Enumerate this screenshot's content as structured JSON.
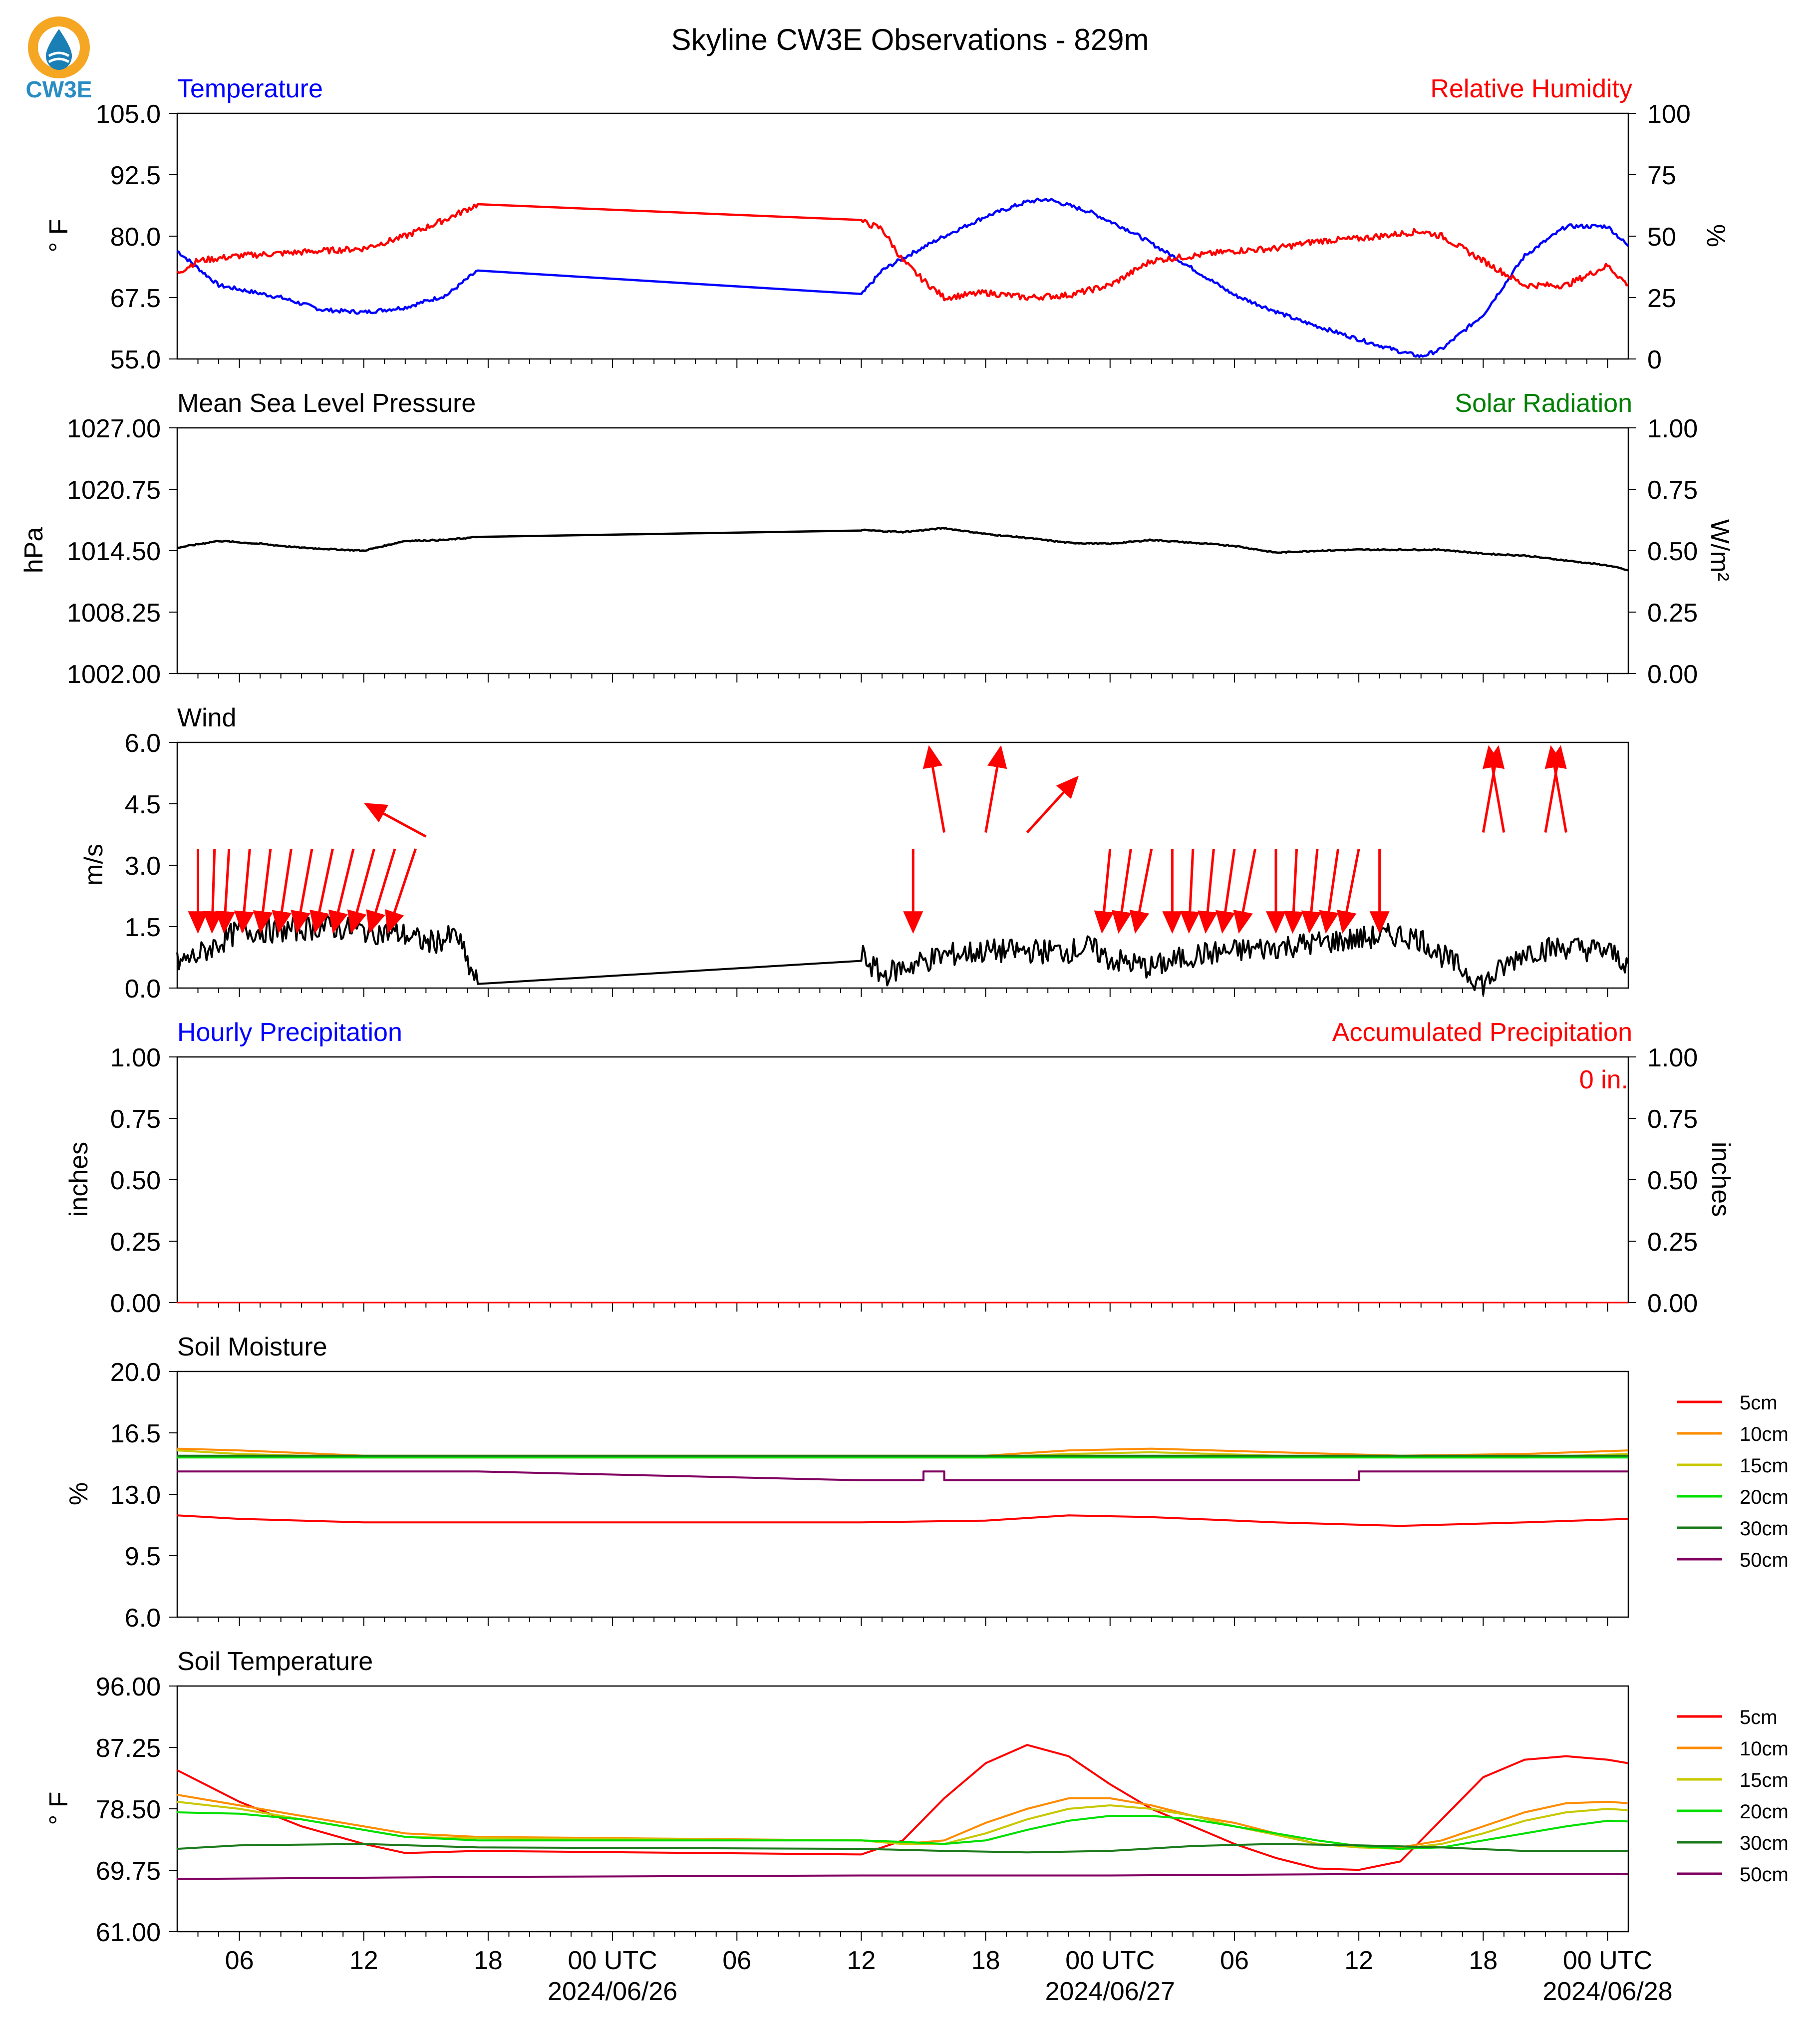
{
  "title": "Skyline CW3E Observations - 829m",
  "logo": {
    "text": "CW3E",
    "colors": {
      "ring": "#f5a623",
      "drop": "#1a7fb5",
      "text": "#2a8cc4"
    }
  },
  "colors": {
    "blue": "#0000ff",
    "red": "#ff0000",
    "green": "#008000",
    "black": "#000000"
  },
  "x_axis": {
    "tick_labels": [
      "06",
      "12",
      "18",
      "00 UTC",
      "06",
      "12",
      "18",
      "00 UTC",
      "06",
      "12",
      "18",
      "00 UTC"
    ],
    "tick_hours": [
      6,
      12,
      18,
      24,
      30,
      36,
      42,
      48,
      54,
      60,
      66,
      72
    ],
    "date_labels": [
      {
        "text": "2024/06/26",
        "hour": 24
      },
      {
        "text": "2024/06/27",
        "hour": 48
      },
      {
        "text": "2024/06/28",
        "hour": 72
      }
    ],
    "range_hours": [
      3,
      73
    ]
  },
  "panels": {
    "temp_rh": {
      "left_title": "Temperature",
      "right_title": "Relative Humidity",
      "left_unit": "° F",
      "right_unit": "%",
      "left_ticks": [
        "105.0",
        "92.5",
        "80.0",
        "67.5",
        "55.0"
      ],
      "right_ticks": [
        "100",
        "75",
        "50",
        "25",
        "0"
      ]
    },
    "pressure": {
      "left_title": "Mean Sea Level Pressure",
      "right_title": "Solar Radiation",
      "left_unit": "hPa",
      "right_unit": "W/m²",
      "left_ticks": [
        "1027.00",
        "1020.75",
        "1014.50",
        "1008.25",
        "1002.00"
      ],
      "right_ticks": [
        "1.00",
        "0.75",
        "0.50",
        "0.25",
        "0.00"
      ]
    },
    "wind": {
      "left_title": "Wind",
      "left_unit": "m/s",
      "left_ticks": [
        "6.0",
        "4.5",
        "3.0",
        "1.5",
        "0.0"
      ]
    },
    "precip": {
      "left_title": "Hourly Precipitation",
      "right_title": "Accumulated Precipitation",
      "left_unit": "inches",
      "right_unit": "inches",
      "accum_label": "0 in.",
      "left_ticks": [
        "1.00",
        "0.75",
        "0.50",
        "0.25",
        "0.00"
      ],
      "right_ticks": [
        "1.00",
        "0.75",
        "0.50",
        "0.25",
        "0.00"
      ]
    },
    "soil_moisture": {
      "left_title": "Soil Moisture",
      "left_unit": "%",
      "left_ticks": [
        "20.0",
        "16.5",
        "13.0",
        "9.5",
        "6.0"
      ]
    },
    "soil_temp": {
      "left_title": "Soil Temperature",
      "left_unit": "° F",
      "left_ticks": [
        "96.00",
        "87.25",
        "78.50",
        "69.75",
        "61.00"
      ]
    }
  },
  "legends": {
    "soil_moisture": [
      {
        "label": "5cm",
        "color": "#ff0000"
      },
      {
        "label": "10cm",
        "color": "#ff8c00"
      },
      {
        "label": "15cm",
        "color": "#c8c800"
      },
      {
        "label": "20cm",
        "color": "#00e000"
      },
      {
        "label": "30cm",
        "color": "#1a7a1a"
      },
      {
        "label": "50cm",
        "color": "#800060"
      }
    ],
    "soil_temp": [
      {
        "label": "5cm",
        "color": "#ff0000"
      },
      {
        "label": "10cm",
        "color": "#ff8c00"
      },
      {
        "label": "15cm",
        "color": "#c8c800"
      },
      {
        "label": "20cm",
        "color": "#00e000"
      },
      {
        "label": "30cm",
        "color": "#1a7a1a"
      },
      {
        "label": "50cm",
        "color": "#800060"
      }
    ]
  },
  "chart_data": [
    {
      "type": "line",
      "title": "Temperature / Relative Humidity",
      "ylim_left": [
        55,
        105
      ],
      "ylim_right": [
        0,
        100
      ],
      "series": [
        {
          "name": "Temperature",
          "axis": "left",
          "color": "#0000ff",
          "x": [
            3,
            5,
            8,
            10,
            12,
            14,
            16,
            17.5,
            36,
            37,
            38,
            40,
            42,
            44,
            45,
            47,
            49,
            51,
            54,
            57,
            60,
            62,
            63,
            64,
            66,
            68,
            70,
            72,
            73
          ],
          "y": [
            77,
            70,
            67.5,
            65,
            64.5,
            65.5,
            68,
            73,
            68,
            73,
            75.5,
            80,
            84,
            87,
            87.5,
            85,
            81,
            76,
            68,
            63,
            59,
            56.5,
            55.5,
            57,
            64,
            76,
            82,
            82,
            78
          ]
        },
        {
          "name": "Relative Humidity",
          "axis": "right",
          "color": "#ff0000",
          "x": [
            3,
            4,
            6,
            8,
            10,
            12,
            14,
            16,
            17.5,
            36,
            37,
            38,
            39,
            40,
            42,
            44,
            46,
            48,
            50,
            52,
            54,
            56,
            58,
            60,
            62,
            63,
            64,
            65,
            66,
            68,
            70,
            72,
            73
          ],
          "y": [
            35,
            40,
            42,
            43,
            44,
            45,
            50,
            57,
            63,
            56,
            53,
            40,
            32,
            25,
            27,
            25,
            26,
            30,
            40,
            42,
            44,
            45,
            48,
            49,
            51,
            52,
            50,
            45,
            40,
            30,
            30,
            38,
            30
          ]
        }
      ]
    },
    {
      "type": "line",
      "title": "Mean Sea Level Pressure",
      "ylim_left": [
        1002,
        1027
      ],
      "ylim_right": [
        0,
        1
      ],
      "series": [
        {
          "name": "Mean Sea Level Pressure",
          "axis": "left",
          "color": "#000000",
          "x": [
            3,
            5,
            7,
            9,
            12,
            14,
            16,
            17.5,
            36,
            38,
            40,
            42,
            44,
            46,
            48,
            50,
            52,
            54,
            56,
            58,
            60,
            62,
            64,
            66,
            68,
            70,
            72,
            73
          ],
          "y": [
            1014.8,
            1015.5,
            1015.2,
            1014.8,
            1014.5,
            1015.5,
            1015.6,
            1015.9,
            1016.6,
            1016.4,
            1016.8,
            1016.2,
            1015.8,
            1015.3,
            1015.2,
            1015.6,
            1015.3,
            1015.0,
            1014.3,
            1014.5,
            1014.6,
            1014.6,
            1014.6,
            1014.2,
            1014.0,
            1013.5,
            1013.0,
            1012.5
          ]
        }
      ]
    },
    {
      "type": "line",
      "title": "Wind",
      "ylim": [
        0,
        6
      ],
      "series": [
        {
          "name": "Wind speed",
          "color": "#000000",
          "x": [
            3,
            4,
            5,
            6,
            8,
            10,
            12,
            14,
            15,
            16,
            16.5,
            17,
            17.5,
            36,
            37,
            38,
            40,
            42,
            44,
            46,
            47,
            48,
            50,
            52,
            54,
            56,
            58,
            60,
            62,
            63,
            64,
            66,
            68,
            70,
            72,
            73
          ],
          "y": [
            0.6,
            0.8,
            1.1,
            1.4,
            1.4,
            1.5,
            1.4,
            1.3,
            1.1,
            1.2,
            1.3,
            0.6,
            0.1,
            0.8,
            0.3,
            0.5,
            0.8,
            0.9,
            0.9,
            0.9,
            1.0,
            0.7,
            0.5,
            0.8,
            0.9,
            1.0,
            1.1,
            1.2,
            1.3,
            1.2,
            0.8,
            0.1,
            0.9,
            1.0,
            0.9,
            0.6
          ]
        }
      ],
      "arrows": {
        "x": [
          4,
          4.8,
          5.5,
          6.5,
          7.5,
          8.5,
          9.5,
          10.5,
          11.5,
          12.5,
          13.5,
          14.5,
          15,
          38.5,
          40,
          42,
          44,
          48,
          49,
          50,
          51,
          52,
          53,
          54,
          55,
          56,
          57,
          58,
          59,
          60,
          61,
          66,
          67,
          69,
          70
        ],
        "y": [
          3.4,
          3.4,
          3.4,
          3.4,
          3.4,
          3.4,
          3.4,
          3.4,
          3.4,
          3.4,
          3.4,
          3.4,
          3.7,
          3.4,
          3.8,
          3.8,
          3.8,
          3.4,
          3.4,
          3.4,
          3.4,
          3.4,
          3.4,
          3.4,
          3.4,
          3.4,
          3.4,
          3.4,
          3.4,
          3.4,
          3.4,
          3.8,
          3.8,
          3.8,
          3.8
        ]
      }
    },
    {
      "type": "line",
      "title": "Precipitation",
      "ylim_left": [
        0,
        1
      ],
      "ylim_right": [
        0,
        1
      ],
      "series": [
        {
          "name": "Hourly Precipitation",
          "axis": "left",
          "color": "#0000ff",
          "x": [
            3,
            73
          ],
          "y": [
            0,
            0
          ]
        },
        {
          "name": "Accumulated Precipitation",
          "axis": "right",
          "color": "#ff0000",
          "x": [
            3,
            73
          ],
          "y": [
            0,
            0
          ]
        }
      ]
    },
    {
      "type": "line",
      "title": "Soil Moisture",
      "ylim": [
        6,
        20
      ],
      "series": [
        {
          "name": "5cm",
          "color": "#ff0000",
          "x": [
            3,
            6,
            12,
            36,
            42,
            46,
            50,
            56,
            62,
            68,
            73
          ],
          "y": [
            11.8,
            11.6,
            11.4,
            11.4,
            11.5,
            11.8,
            11.7,
            11.4,
            11.2,
            11.4,
            11.6
          ]
        },
        {
          "name": "10cm",
          "color": "#ff8c00",
          "x": [
            3,
            6,
            12,
            36,
            42,
            46,
            50,
            56,
            62,
            68,
            73
          ],
          "y": [
            15.6,
            15.5,
            15.2,
            15.2,
            15.2,
            15.5,
            15.6,
            15.4,
            15.2,
            15.3,
            15.5
          ]
        },
        {
          "name": "15cm",
          "color": "#c8c800",
          "x": [
            3,
            6,
            12,
            36,
            42,
            46,
            50,
            56,
            62,
            68,
            73
          ],
          "y": [
            15.5,
            15.3,
            15.1,
            15.1,
            15.1,
            15.3,
            15.4,
            15.2,
            15.1,
            15.1,
            15.3
          ]
        },
        {
          "name": "20cm",
          "color": "#00e000",
          "x": [
            3,
            73
          ],
          "y": [
            15.1,
            15.1
          ]
        },
        {
          "name": "30cm",
          "color": "#1a7a1a",
          "x": [
            3,
            73
          ],
          "y": [
            15.2,
            15.2
          ]
        },
        {
          "name": "50cm",
          "color": "#800060",
          "x": [
            3,
            17.5,
            36,
            39,
            39,
            40,
            40,
            60,
            60,
            73
          ],
          "y": [
            14.3,
            14.3,
            13.8,
            13.8,
            14.3,
            14.3,
            13.8,
            13.8,
            14.3,
            14.3
          ]
        }
      ]
    },
    {
      "type": "line",
      "title": "Soil Temperature",
      "ylim": [
        61,
        96
      ],
      "series": [
        {
          "name": "5cm",
          "color": "#ff0000",
          "x": [
            3,
            6,
            9,
            12,
            14,
            17.5,
            36,
            38,
            40,
            42,
            44,
            46,
            48,
            50,
            52,
            54,
            56,
            58,
            60,
            62,
            64,
            66,
            68,
            70,
            72,
            73
          ],
          "y": [
            84,
            79.5,
            76,
            73.5,
            72.2,
            72.5,
            72,
            74,
            80,
            85,
            87.6,
            86,
            82,
            78.5,
            76,
            73.5,
            71.5,
            70,
            69.8,
            71,
            77,
            83,
            85.5,
            86,
            85.5,
            85
          ]
        },
        {
          "name": "10cm",
          "color": "#ff8c00",
          "x": [
            3,
            6,
            9,
            12,
            14,
            17.5,
            36,
            38,
            40,
            42,
            44,
            46,
            48,
            50,
            52,
            54,
            56,
            58,
            60,
            62,
            64,
            66,
            68,
            70,
            72,
            73
          ],
          "y": [
            80.5,
            79,
            77.5,
            76,
            75,
            74.5,
            74,
            73.5,
            74,
            76.5,
            78.5,
            80,
            80,
            79,
            77.5,
            76.5,
            75,
            73.5,
            73,
            73,
            74,
            76,
            78,
            79.3,
            79.5,
            79.3
          ]
        },
        {
          "name": "15cm",
          "color": "#c8c800",
          "x": [
            3,
            6,
            9,
            12,
            14,
            17.5,
            36,
            38,
            40,
            42,
            44,
            46,
            48,
            50,
            52,
            54,
            56,
            58,
            60,
            62,
            64,
            66,
            68,
            70,
            72,
            73
          ],
          "y": [
            79.5,
            78.5,
            77,
            75.5,
            74.5,
            74.3,
            74,
            73.5,
            73.5,
            75,
            77,
            78.5,
            79,
            78.5,
            77.5,
            76,
            74.8,
            73.5,
            73,
            72.8,
            73.5,
            75,
            76.8,
            78,
            78.5,
            78.3
          ]
        },
        {
          "name": "20cm",
          "color": "#00e000",
          "x": [
            3,
            6,
            9,
            12,
            14,
            17.5,
            36,
            38,
            40,
            42,
            44,
            46,
            48,
            50,
            52,
            54,
            56,
            58,
            60,
            62,
            64,
            66,
            68,
            70,
            72,
            73
          ],
          "y": [
            78,
            77.8,
            77,
            75.5,
            74.5,
            74,
            74,
            73.8,
            73.5,
            74,
            75.5,
            76.8,
            77.5,
            77.5,
            77,
            76,
            75,
            74,
            73.2,
            72.8,
            73,
            74,
            75,
            76,
            76.8,
            76.7
          ]
        },
        {
          "name": "30cm",
          "color": "#1a7a1a",
          "x": [
            3,
            6,
            12,
            17.5,
            36,
            40,
            44,
            48,
            52,
            56,
            60,
            64,
            68,
            72,
            73
          ],
          "y": [
            72.8,
            73.3,
            73.5,
            73,
            72.8,
            72.5,
            72.3,
            72.5,
            73.2,
            73.5,
            73.3,
            73,
            72.5,
            72.5,
            72.5
          ]
        },
        {
          "name": "50cm",
          "color": "#800060",
          "x": [
            3,
            17.5,
            36,
            48,
            60,
            73
          ],
          "y": [
            68.5,
            68.8,
            69,
            69,
            69.2,
            69.2
          ]
        }
      ]
    }
  ]
}
